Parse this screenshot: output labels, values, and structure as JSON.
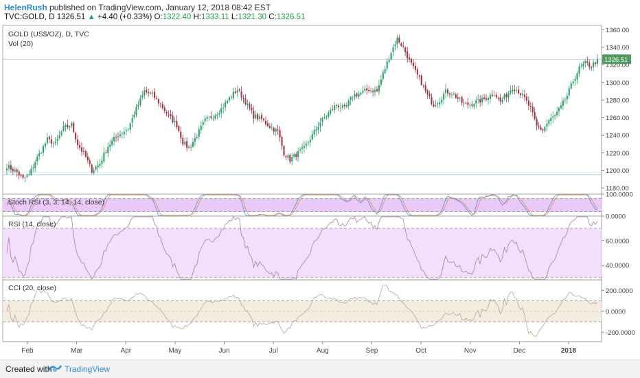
{
  "header": {
    "author": "HelenRush",
    "published_text": "published on TradingView.com, January 12, 2018 08:42 EST",
    "symbol": "TVC:GOLD, D",
    "last": "1326.51",
    "change_arrow": "▲",
    "change": "+4.40 (+0.33%)",
    "o_label": "O:",
    "o_value": "1322.40",
    "h_label": "H:",
    "h_value": "1333.11",
    "l_label": "L:",
    "l_value": "1321.30",
    "c_label": "C:",
    "c_value": "1326.51"
  },
  "footer": {
    "created_with": "Created with",
    "brand": "TradingView"
  },
  "colors": {
    "up": "#26a269",
    "down": "#a8313f",
    "stoch_fill": "#e9c9f7",
    "rsi_fill": "#f3dffb",
    "cci_fill": "#f4ece1",
    "price_tag": "#4f9a5c"
  },
  "chart_data": [
    {
      "type": "candlestick",
      "title": "GOLD (US$/OZ), D, TVC",
      "volume_label": "Vol (20)",
      "y_ticks": [
        "1360.00",
        "1340.00",
        "1320.00",
        "1300.00",
        "1280.00",
        "1260.00",
        "1240.00",
        "1220.00",
        "1200.00",
        "1180.00"
      ],
      "ylim": [
        1173,
        1365
      ],
      "last_price": "1326.51",
      "x_ticks": [
        "Feb",
        "Mar",
        "Apr",
        "May",
        "Jun",
        "Jul",
        "Aug",
        "Sep",
        "Oct",
        "Nov",
        "Dec",
        "2018"
      ],
      "close_anchors": [
        [
          0,
          1205
        ],
        [
          5,
          1198
        ],
        [
          8,
          1190
        ],
        [
          11,
          1195
        ],
        [
          14,
          1210
        ],
        [
          20,
          1235
        ],
        [
          24,
          1230
        ],
        [
          28,
          1248
        ],
        [
          32,
          1252
        ],
        [
          35,
          1230
        ],
        [
          39,
          1215
        ],
        [
          42,
          1200
        ],
        [
          46,
          1208
        ],
        [
          50,
          1228
        ],
        [
          55,
          1240
        ],
        [
          60,
          1248
        ],
        [
          64,
          1270
        ],
        [
          68,
          1290
        ],
        [
          72,
          1286
        ],
        [
          76,
          1275
        ],
        [
          80,
          1262
        ],
        [
          84,
          1252
        ],
        [
          87,
          1232
        ],
        [
          90,
          1225
        ],
        [
          94,
          1240
        ],
        [
          98,
          1257
        ],
        [
          102,
          1262
        ],
        [
          106,
          1270
        ],
        [
          110,
          1282
        ],
        [
          114,
          1292
        ],
        [
          118,
          1278
        ],
        [
          122,
          1262
        ],
        [
          126,
          1258
        ],
        [
          130,
          1250
        ],
        [
          134,
          1244
        ],
        [
          137,
          1220
        ],
        [
          140,
          1212
        ],
        [
          143,
          1218
        ],
        [
          147,
          1225
        ],
        [
          151,
          1240
        ],
        [
          155,
          1255
        ],
        [
          159,
          1265
        ],
        [
          163,
          1275
        ],
        [
          167,
          1270
        ],
        [
          171,
          1285
        ],
        [
          175,
          1288
        ],
        [
          179,
          1292
        ],
        [
          183,
          1290
        ],
        [
          186,
          1310
        ],
        [
          190,
          1335
        ],
        [
          193,
          1350
        ],
        [
          196,
          1340
        ],
        [
          199,
          1325
        ],
        [
          202,
          1312
        ],
        [
          205,
          1300
        ],
        [
          208,
          1285
        ],
        [
          211,
          1275
        ],
        [
          214,
          1280
        ],
        [
          217,
          1290
        ],
        [
          220,
          1288
        ],
        [
          223,
          1282
        ],
        [
          226,
          1275
        ],
        [
          229,
          1275
        ],
        [
          232,
          1278
        ],
        [
          235,
          1280
        ],
        [
          238,
          1284
        ],
        [
          241,
          1288
        ],
        [
          244,
          1278
        ],
        [
          247,
          1286
        ],
        [
          250,
          1295
        ],
        [
          253,
          1290
        ],
        [
          256,
          1282
        ],
        [
          259,
          1270
        ],
        [
          262,
          1250
        ],
        [
          265,
          1246
        ],
        [
          268,
          1257
        ],
        [
          271,
          1262
        ],
        [
          274,
          1272
        ],
        [
          277,
          1285
        ],
        [
          280,
          1302
        ],
        [
          283,
          1316
        ],
        [
          286,
          1322
        ],
        [
          289,
          1318
        ],
        [
          292,
          1326.51
        ]
      ],
      "n_days": 293
    },
    {
      "type": "line",
      "title": "Stoch RSI (3, 3, 14, 14, close)",
      "y_ticks": [
        "100.0000",
        "0.0000"
      ],
      "ylim": [
        0,
        100
      ],
      "bands": [
        20,
        80
      ]
    },
    {
      "type": "line",
      "title": "RSI (14, close)",
      "y_ticks": [
        "60.0000",
        "40.0000"
      ],
      "ylim": [
        28,
        80
      ],
      "bands": [
        30,
        70
      ]
    },
    {
      "type": "line",
      "title": "CCI (20, close)",
      "y_ticks": [
        "200.0000",
        "0.0000",
        "-200.0000"
      ],
      "ylim": [
        -290,
        300
      ],
      "bands": [
        -100,
        100
      ]
    }
  ]
}
